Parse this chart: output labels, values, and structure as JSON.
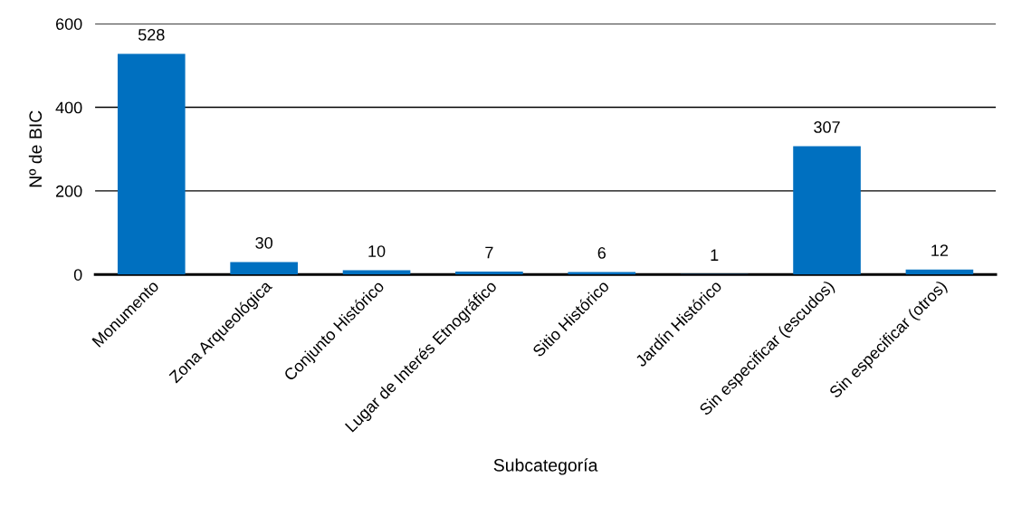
{
  "chart_data": {
    "type": "bar",
    "xlabel": "Subcategoría",
    "ylabel": "Nº de BIC",
    "categories": [
      "Monumento",
      "Zona Arqueológica",
      "Conjunto Histórico",
      "Lugar de Interés Etnográfico",
      "Sitio Histórico",
      "Jardín Histórico",
      "Sin especificar (escudos)",
      "Sin especificar (otros)"
    ],
    "values": [
      528,
      30,
      10,
      7,
      6,
      1,
      307,
      12
    ],
    "color": "#0070c0",
    "ylim": [
      0,
      600
    ],
    "yticks": [
      0,
      200,
      400,
      600
    ],
    "grid": "y",
    "data_labels": true,
    "legend": false
  }
}
